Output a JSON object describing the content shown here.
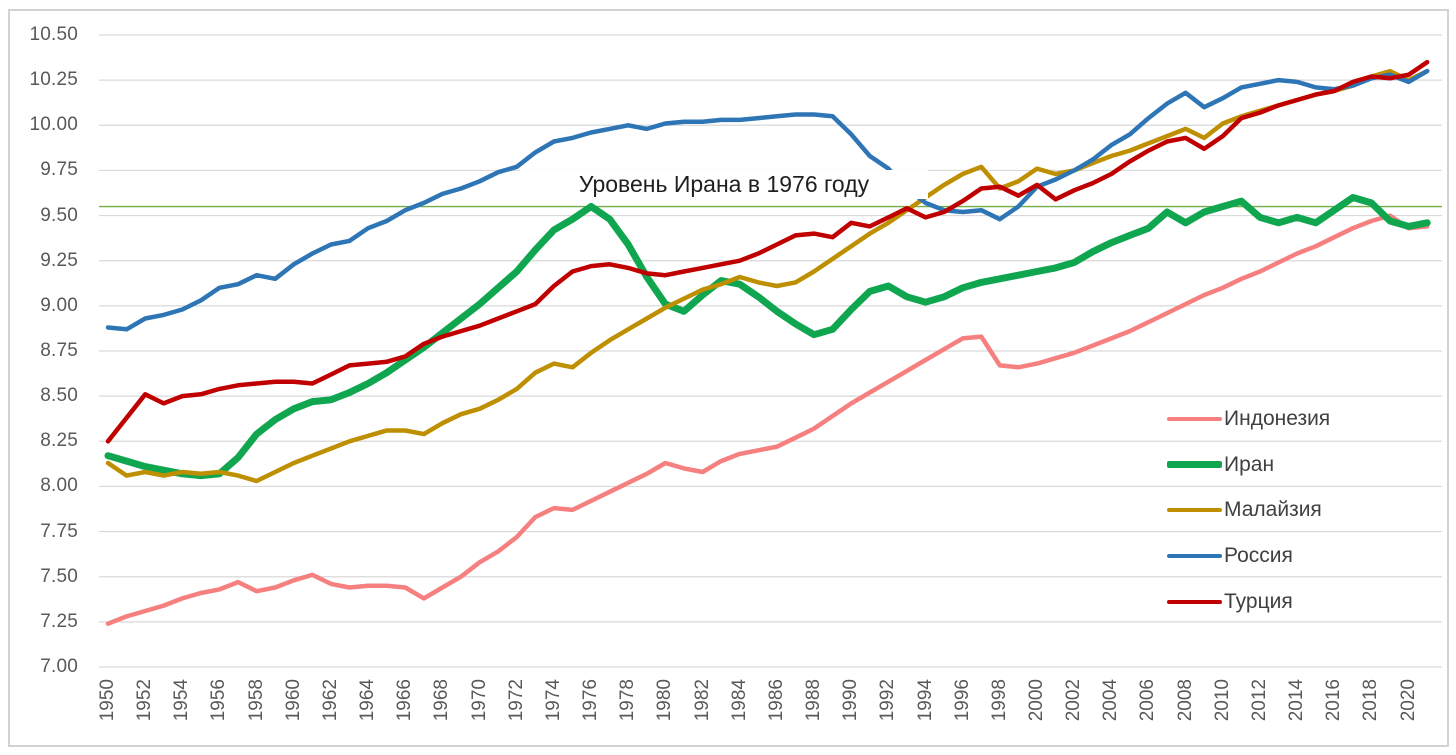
{
  "chart_data": {
    "type": "line",
    "title": "",
    "annotation": {
      "text": "Уровень Ирана в 1976 году",
      "reference_value": 9.55,
      "reference_line_color": "#70AD47"
    },
    "x": {
      "start_year": 1950,
      "end_year": 2021,
      "tick_labels": [
        "1950",
        "1952",
        "1954",
        "1956",
        "1958",
        "1960",
        "1962",
        "1964",
        "1966",
        "1968",
        "1970",
        "1972",
        "1974",
        "1976",
        "1978",
        "1980",
        "1982",
        "1984",
        "1986",
        "1988",
        "1990",
        "1992",
        "1994",
        "1996",
        "1998",
        "2000",
        "2002",
        "2004",
        "2006",
        "2008",
        "2010",
        "2012",
        "2014",
        "2016",
        "2018",
        "2020"
      ]
    },
    "y": {
      "min": 7.0,
      "max": 10.5,
      "step": 0.25,
      "tick_labels": [
        "7.00",
        "7.25",
        "7.50",
        "7.75",
        "8.00",
        "8.25",
        "8.50",
        "8.75",
        "9.00",
        "9.25",
        "9.50",
        "9.75",
        "10.00",
        "10.25",
        "10.50"
      ]
    },
    "grid": true,
    "legend_position": "right-middle",
    "series": [
      {
        "name": "Индонезия",
        "color": "#F67F7F",
        "stroke_width": 4.5,
        "values": [
          7.24,
          7.28,
          7.31,
          7.34,
          7.38,
          7.41,
          7.43,
          7.47,
          7.42,
          7.44,
          7.48,
          7.51,
          7.46,
          7.44,
          7.45,
          7.45,
          7.44,
          7.38,
          7.44,
          7.5,
          7.58,
          7.64,
          7.72,
          7.83,
          7.88,
          7.87,
          7.92,
          7.97,
          8.02,
          8.07,
          8.13,
          8.1,
          8.08,
          8.14,
          8.18,
          8.2,
          8.22,
          8.27,
          8.32,
          8.39,
          8.46,
          8.52,
          8.58,
          8.64,
          8.7,
          8.76,
          8.82,
          8.83,
          8.67,
          8.66,
          8.68,
          8.71,
          8.74,
          8.78,
          8.82,
          8.86,
          8.91,
          8.96,
          9.01,
          9.06,
          9.1,
          9.15,
          9.19,
          9.24,
          9.29,
          9.33,
          9.38,
          9.43,
          9.47,
          9.5,
          9.43,
          9.44
        ]
      },
      {
        "name": "Иран",
        "color": "#10A650",
        "stroke_width": 7,
        "values": [
          8.17,
          8.14,
          8.11,
          8.09,
          8.07,
          8.06,
          8.07,
          8.16,
          8.29,
          8.37,
          8.43,
          8.47,
          8.48,
          8.52,
          8.57,
          8.63,
          8.7,
          8.77,
          8.85,
          8.93,
          9.01,
          9.1,
          9.19,
          9.31,
          9.42,
          9.48,
          9.55,
          9.48,
          9.34,
          9.16,
          9.01,
          8.97,
          9.06,
          9.14,
          9.12,
          9.05,
          8.97,
          8.9,
          8.84,
          8.87,
          8.98,
          9.08,
          9.11,
          9.05,
          9.02,
          9.05,
          9.1,
          9.13,
          9.15,
          9.17,
          9.19,
          9.21,
          9.24,
          9.3,
          9.35,
          9.39,
          9.43,
          9.52,
          9.46,
          9.52,
          9.55,
          9.58,
          9.49,
          9.46,
          9.49,
          9.46,
          9.53,
          9.6,
          9.57,
          9.47,
          9.44,
          9.46
        ]
      },
      {
        "name": "Малайзия",
        "color": "#BE8F00",
        "stroke_width": 4.5,
        "values": [
          8.13,
          8.06,
          8.08,
          8.06,
          8.08,
          8.07,
          8.08,
          8.06,
          8.03,
          8.08,
          8.13,
          8.17,
          8.21,
          8.25,
          8.28,
          8.31,
          8.31,
          8.29,
          8.35,
          8.4,
          8.43,
          8.48,
          8.54,
          8.63,
          8.68,
          8.66,
          8.74,
          8.81,
          8.87,
          8.93,
          8.99,
          9.04,
          9.09,
          9.12,
          9.16,
          9.13,
          9.11,
          9.13,
          9.19,
          9.26,
          9.33,
          9.4,
          9.46,
          9.53,
          9.6,
          9.67,
          9.73,
          9.77,
          9.65,
          9.69,
          9.76,
          9.73,
          9.75,
          9.79,
          9.83,
          9.86,
          9.9,
          9.94,
          9.98,
          9.93,
          10.01,
          10.05,
          10.08,
          10.11,
          10.14,
          10.17,
          10.19,
          10.22,
          10.27,
          10.3,
          10.25,
          10.3
        ]
      },
      {
        "name": "Россия",
        "color": "#2E75B6",
        "stroke_width": 4.5,
        "values": [
          8.88,
          8.87,
          8.93,
          8.95,
          8.98,
          9.03,
          9.1,
          9.12,
          9.17,
          9.15,
          9.23,
          9.29,
          9.34,
          9.36,
          9.43,
          9.47,
          9.53,
          9.57,
          9.62,
          9.65,
          9.69,
          9.74,
          9.77,
          9.85,
          9.91,
          9.93,
          9.96,
          9.98,
          10.0,
          9.98,
          10.01,
          10.02,
          10.02,
          10.03,
          10.03,
          10.04,
          10.05,
          10.06,
          10.06,
          10.05,
          9.95,
          9.83,
          9.76,
          9.65,
          9.57,
          9.53,
          9.52,
          9.53,
          9.48,
          9.55,
          9.66,
          9.7,
          9.75,
          9.81,
          9.89,
          9.95,
          10.04,
          10.12,
          10.18,
          10.1,
          10.15,
          10.21,
          10.23,
          10.25,
          10.24,
          10.21,
          10.2,
          10.22,
          10.26,
          10.28,
          10.24,
          10.3
        ]
      },
      {
        "name": "Турция",
        "color": "#C00000",
        "stroke_width": 4.5,
        "values": [
          8.25,
          8.38,
          8.51,
          8.46,
          8.5,
          8.51,
          8.54,
          8.56,
          8.57,
          8.58,
          8.58,
          8.57,
          8.62,
          8.67,
          8.68,
          8.69,
          8.72,
          8.79,
          8.83,
          8.86,
          8.89,
          8.93,
          8.97,
          9.01,
          9.11,
          9.19,
          9.22,
          9.23,
          9.21,
          9.18,
          9.17,
          9.19,
          9.21,
          9.23,
          9.25,
          9.29,
          9.34,
          9.39,
          9.4,
          9.38,
          9.46,
          9.44,
          9.49,
          9.54,
          9.49,
          9.52,
          9.58,
          9.65,
          9.66,
          9.61,
          9.67,
          9.59,
          9.64,
          9.68,
          9.73,
          9.8,
          9.86,
          9.91,
          9.93,
          9.87,
          9.94,
          10.04,
          10.07,
          10.11,
          10.14,
          10.17,
          10.19,
          10.24,
          10.27,
          10.26,
          10.28,
          10.35
        ]
      }
    ]
  },
  "styles": {
    "background": "#FFFFFF",
    "frame_border_color": "#D2D2D2",
    "grid_color": "#D9D9D9",
    "axis_text_color": "#595959",
    "legend_text_color": "#404040",
    "annotation_color": "#1F1F1F"
  }
}
